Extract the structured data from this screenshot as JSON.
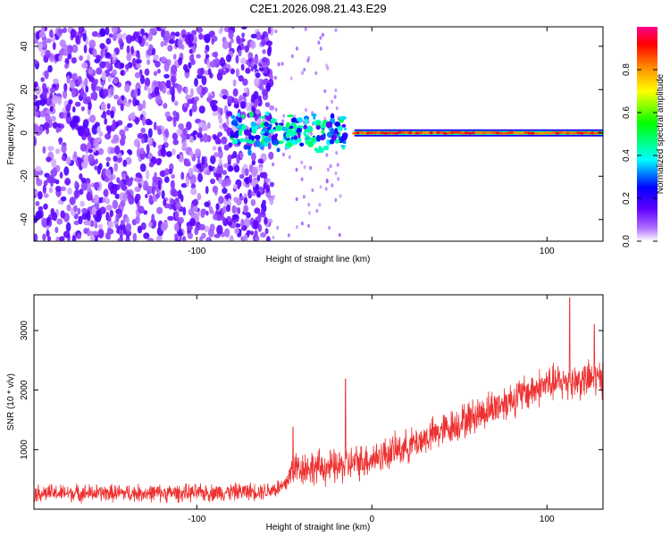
{
  "figure": {
    "title": "C2E1.2026.098.21.43.E29"
  },
  "chart_data": [
    {
      "type": "heatmap",
      "xlabel": "Height of straight line (km)",
      "ylabel": "Frequency (Hz)",
      "xlim": [
        -193,
        132
      ],
      "ylim": [
        -50,
        49
      ],
      "xticks": [
        -100,
        0,
        100
      ],
      "xtick_labels": [
        "-100",
        "",
        "100"
      ],
      "yticks": [
        -40,
        -20,
        0,
        20,
        40
      ],
      "ytick_labels": [
        "-40",
        "-20",
        "0",
        "20",
        "40"
      ],
      "colorbar": {
        "label": "Normalized spectral amplitude",
        "range": [
          0,
          1
        ],
        "ticks": [
          0,
          0.2,
          0.4,
          0.6,
          0.8
        ],
        "tick_labels": [
          "0.0",
          "0.2",
          "0.4",
          "0.6",
          "0.8"
        ],
        "colors": [
          "#ffffff",
          "#8000ff",
          "#0000ff",
          "#00ffff",
          "#00ff00",
          "#ffff00",
          "#ff8000",
          "#ff0000",
          "#ff00a0"
        ]
      },
      "features": {
        "noise_region_x": [
          -193,
          -57
        ],
        "noise_amplitude": 0.15,
        "transition_x": [
          -80,
          -15
        ],
        "line_frequency_hz": 0,
        "line_start_x": -10,
        "line_amplitude": 0.9
      }
    },
    {
      "type": "line",
      "xlabel": "Height of straight line (km)",
      "ylabel": "SNR (10 * v/v)",
      "xlim": [
        -193,
        132
      ],
      "ylim": [
        0,
        3600
      ],
      "xticks": [
        -100,
        0,
        100
      ],
      "xtick_labels": [
        "-100",
        "0",
        "100"
      ],
      "yticks": [
        1000,
        2000,
        3000
      ],
      "ytick_labels": [
        "1000",
        "2000",
        "3000"
      ],
      "series": [
        {
          "color": "#ee3030",
          "trend_x": [
            -193,
            -100,
            -60,
            -50,
            -45,
            -20,
            0,
            20,
            50,
            80,
            100,
            132
          ],
          "trend_y": [
            270,
            270,
            310,
            380,
            700,
            700,
            850,
            1050,
            1450,
            1850,
            2100,
            2200
          ],
          "noise": [
            150,
            150,
            150,
            180,
            300,
            300,
            300,
            280,
            300,
            320,
            320,
            320
          ],
          "spikes": [
            {
              "x": -15,
              "y": 2190
            },
            {
              "x": 113,
              "y": 3550
            },
            {
              "x": 127,
              "y": 3100
            },
            {
              "x": -45,
              "y": 1380
            }
          ]
        }
      ]
    }
  ]
}
